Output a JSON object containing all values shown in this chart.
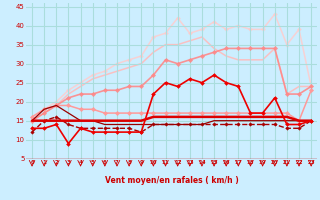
{
  "bg_color": "#cceeff",
  "grid_color": "#aadddd",
  "xlabel": "Vent moyen/en rafales ( km/h )",
  "xlabel_color": "#cc0000",
  "tick_color": "#cc0000",
  "xlim": [
    -0.5,
    23.5
  ],
  "ylim": [
    5,
    46
  ],
  "yticks": [
    5,
    10,
    15,
    20,
    25,
    30,
    35,
    40,
    45
  ],
  "xticks": [
    0,
    1,
    2,
    3,
    4,
    5,
    6,
    7,
    8,
    9,
    10,
    11,
    12,
    13,
    14,
    15,
    16,
    17,
    18,
    19,
    20,
    21,
    22,
    23
  ],
  "lines": [
    {
      "x": [
        0,
        1,
        2,
        3,
        4,
        5,
        6,
        7,
        8,
        9,
        10,
        11,
        12,
        13,
        14,
        15,
        16,
        17,
        18,
        19,
        20,
        21,
        22,
        23
      ],
      "y": [
        15,
        15,
        15,
        15,
        15,
        15,
        15,
        15,
        15,
        15,
        16,
        16,
        16,
        16,
        16,
        16,
        16,
        16,
        16,
        16,
        16,
        16,
        15,
        15
      ],
      "color": "#dd0000",
      "lw": 1.8,
      "marker": null,
      "ms": 0,
      "alpha": 1.0,
      "zorder": 4
    },
    {
      "x": [
        0,
        1,
        2,
        3,
        4,
        5,
        6,
        7,
        8,
        9,
        10,
        11,
        12,
        13,
        14,
        15,
        16,
        17,
        18,
        19,
        20,
        21,
        22,
        23
      ],
      "y": [
        13,
        13,
        14,
        9,
        13,
        12,
        12,
        12,
        12,
        12,
        22,
        25,
        24,
        26,
        25,
        27,
        25,
        24,
        17,
        17,
        21,
        14,
        14,
        15
      ],
      "color": "#ee0000",
      "lw": 1.2,
      "marker": "D",
      "ms": 2.0,
      "alpha": 1.0,
      "zorder": 5
    },
    {
      "x": [
        0,
        1,
        2,
        3,
        4,
        5,
        6,
        7,
        8,
        9,
        10,
        11,
        12,
        13,
        14,
        15,
        16,
        17,
        18,
        19,
        20,
        21,
        22,
        23
      ],
      "y": [
        12,
        15,
        16,
        14,
        13,
        13,
        13,
        13,
        13,
        12,
        14,
        14,
        14,
        14,
        14,
        14,
        14,
        14,
        14,
        14,
        14,
        13,
        13,
        15
      ],
      "color": "#aa0000",
      "lw": 1.0,
      "marker": "D",
      "ms": 1.8,
      "alpha": 1.0,
      "zorder": 3,
      "linestyle": "--"
    },
    {
      "x": [
        0,
        1,
        2,
        3,
        4,
        5,
        6,
        7,
        8,
        9,
        10,
        11,
        12,
        13,
        14,
        15,
        16,
        17,
        18,
        19,
        20,
        21,
        22,
        23
      ],
      "y": [
        15,
        18,
        19,
        17,
        15,
        15,
        14,
        14,
        14,
        14,
        14,
        14,
        14,
        14,
        14,
        15,
        15,
        15,
        15,
        15,
        15,
        15,
        15,
        15
      ],
      "color": "#990000",
      "lw": 0.9,
      "marker": null,
      "ms": 0,
      "alpha": 1.0,
      "zorder": 3
    },
    {
      "x": [
        0,
        1,
        2,
        3,
        4,
        5,
        6,
        7,
        8,
        9,
        10,
        11,
        12,
        13,
        14,
        15,
        16,
        17,
        18,
        19,
        20,
        21,
        22,
        23
      ],
      "y": [
        16,
        18,
        19,
        19,
        18,
        18,
        17,
        17,
        17,
        17,
        17,
        17,
        17,
        17,
        17,
        17,
        17,
        17,
        17,
        17,
        17,
        17,
        15,
        23
      ],
      "color": "#ff9999",
      "lw": 1.1,
      "marker": "D",
      "ms": 2.2,
      "alpha": 1.0,
      "zorder": 2
    },
    {
      "x": [
        0,
        1,
        2,
        3,
        4,
        5,
        6,
        7,
        8,
        9,
        10,
        11,
        12,
        13,
        14,
        15,
        16,
        17,
        18,
        19,
        20,
        21,
        22,
        23
      ],
      "y": [
        15,
        17,
        19,
        21,
        22,
        22,
        23,
        23,
        24,
        24,
        27,
        31,
        30,
        31,
        32,
        33,
        34,
        34,
        34,
        34,
        34,
        22,
        22,
        24
      ],
      "color": "#ff8888",
      "lw": 1.2,
      "marker": "D",
      "ms": 2.2,
      "alpha": 0.9,
      "zorder": 2
    },
    {
      "x": [
        0,
        1,
        2,
        3,
        4,
        5,
        6,
        7,
        8,
        9,
        10,
        11,
        12,
        13,
        14,
        15,
        16,
        17,
        18,
        19,
        20,
        21,
        22,
        23
      ],
      "y": [
        15,
        17,
        19,
        22,
        24,
        26,
        27,
        28,
        29,
        30,
        33,
        35,
        35,
        36,
        37,
        34,
        32,
        31,
        31,
        31,
        34,
        22,
        24,
        24
      ],
      "color": "#ffbbbb",
      "lw": 1.1,
      "marker": null,
      "ms": 0,
      "alpha": 0.9,
      "zorder": 1
    },
    {
      "x": [
        0,
        1,
        2,
        3,
        4,
        5,
        6,
        7,
        8,
        9,
        10,
        11,
        12,
        13,
        14,
        15,
        16,
        17,
        18,
        19,
        20,
        21,
        22,
        23
      ],
      "y": [
        16,
        18,
        20,
        23,
        25,
        27,
        28,
        30,
        31,
        32,
        37,
        38,
        42,
        38,
        39,
        41,
        39,
        40,
        39,
        39,
        43,
        35,
        39,
        24
      ],
      "color": "#ffcccc",
      "lw": 1.1,
      "marker": "D",
      "ms": 2.0,
      "alpha": 0.85,
      "zorder": 1
    }
  ]
}
